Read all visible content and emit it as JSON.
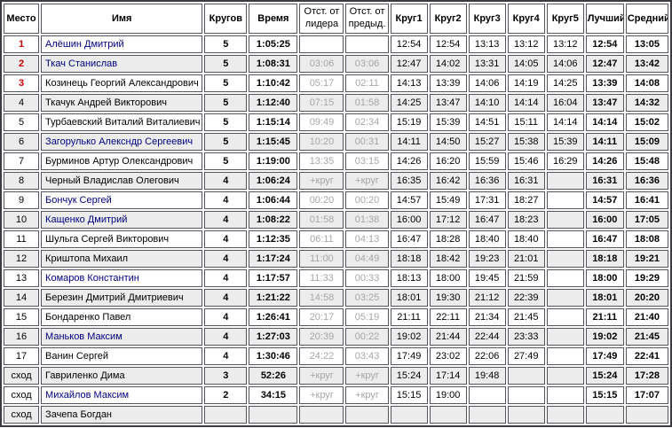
{
  "table": {
    "columns": [
      {
        "key": "place",
        "label": "Место",
        "bold": true
      },
      {
        "key": "name",
        "label": "Имя",
        "bold": true
      },
      {
        "key": "laps",
        "label": "Кругов",
        "bold": true
      },
      {
        "key": "time",
        "label": "Время",
        "bold": true
      },
      {
        "key": "gap_leader",
        "label": "Отст. от лидера",
        "bold": false
      },
      {
        "key": "gap_prev",
        "label": "Отст. от предыд.",
        "bold": false
      },
      {
        "key": "lap1",
        "label": "Круг1",
        "bold": true
      },
      {
        "key": "lap2",
        "label": "Круг2",
        "bold": true
      },
      {
        "key": "lap3",
        "label": "Круг3",
        "bold": true
      },
      {
        "key": "lap4",
        "label": "Круг4",
        "bold": true
      },
      {
        "key": "lap5",
        "label": "Круг5",
        "bold": true
      },
      {
        "key": "best",
        "label": "Лучший",
        "bold": true
      },
      {
        "key": "average",
        "label": "Средний",
        "bold": true
      }
    ],
    "rows": [
      {
        "place": "1",
        "top3": true,
        "name": "Алёшин Дмитрий",
        "name_link": true,
        "laps": "5",
        "time": "1:05:25",
        "gap_leader": "",
        "gap_prev": "",
        "lap_times": [
          "12:54",
          "12:54",
          "13:13",
          "13:12",
          "13:12"
        ],
        "best": "12:54",
        "average": "13:05"
      },
      {
        "place": "2",
        "top3": true,
        "name": "Ткач Станислав",
        "name_link": true,
        "laps": "5",
        "time": "1:08:31",
        "gap_leader": "03:06",
        "gap_prev": "03:06",
        "lap_times": [
          "12:47",
          "14:02",
          "13:31",
          "14:05",
          "14:06"
        ],
        "best": "12:47",
        "average": "13:42"
      },
      {
        "place": "3",
        "top3": true,
        "name": "Козинець Георгий Александрович",
        "name_link": false,
        "laps": "5",
        "time": "1:10:42",
        "gap_leader": "05:17",
        "gap_prev": "02:11",
        "lap_times": [
          "14:13",
          "13:39",
          "14:06",
          "14:19",
          "14:25"
        ],
        "best": "13:39",
        "average": "14:08"
      },
      {
        "place": "4",
        "top3": false,
        "name": "Ткачук Андрей Викторович",
        "name_link": false,
        "laps": "5",
        "time": "1:12:40",
        "gap_leader": "07:15",
        "gap_prev": "01:58",
        "lap_times": [
          "14:25",
          "13:47",
          "14:10",
          "14:14",
          "16:04"
        ],
        "best": "13:47",
        "average": "14:32"
      },
      {
        "place": "5",
        "top3": false,
        "name": "Турбаевский Виталий Виталиевич",
        "name_link": false,
        "laps": "5",
        "time": "1:15:14",
        "gap_leader": "09:49",
        "gap_prev": "02:34",
        "lap_times": [
          "15:19",
          "15:39",
          "14:51",
          "15:11",
          "14:14"
        ],
        "best": "14:14",
        "average": "15:02"
      },
      {
        "place": "6",
        "top3": false,
        "name": "Загорулько Алексндр Сергеевич",
        "name_link": true,
        "laps": "5",
        "time": "1:15:45",
        "gap_leader": "10:20",
        "gap_prev": "00:31",
        "lap_times": [
          "14:11",
          "14:50",
          "15:27",
          "15:38",
          "15:39"
        ],
        "best": "14:11",
        "average": "15:09"
      },
      {
        "place": "7",
        "top3": false,
        "name": "Бурминов Артур Олександрович",
        "name_link": false,
        "laps": "5",
        "time": "1:19:00",
        "gap_leader": "13:35",
        "gap_prev": "03:15",
        "lap_times": [
          "14:26",
          "16:20",
          "15:59",
          "15:46",
          "16:29"
        ],
        "best": "14:26",
        "average": "15:48"
      },
      {
        "place": "8",
        "top3": false,
        "name": "Черный Владислав Олегович",
        "name_link": false,
        "laps": "4",
        "time": "1:06:24",
        "gap_leader": "+круг",
        "gap_prev": "+круг",
        "lap_times": [
          "16:35",
          "16:42",
          "16:36",
          "16:31",
          ""
        ],
        "best": "16:31",
        "average": "16:36"
      },
      {
        "place": "9",
        "top3": false,
        "name": "Бончук Сергей",
        "name_link": true,
        "laps": "4",
        "time": "1:06:44",
        "gap_leader": "00:20",
        "gap_prev": "00:20",
        "lap_times": [
          "14:57",
          "15:49",
          "17:31",
          "18:27",
          ""
        ],
        "best": "14:57",
        "average": "16:41"
      },
      {
        "place": "10",
        "top3": false,
        "name": "Кащенко Дмитрий",
        "name_link": true,
        "laps": "4",
        "time": "1:08:22",
        "gap_leader": "01:58",
        "gap_prev": "01:38",
        "lap_times": [
          "16:00",
          "17:12",
          "16:47",
          "18:23",
          ""
        ],
        "best": "16:00",
        "average": "17:05"
      },
      {
        "place": "11",
        "top3": false,
        "name": "Шульга Сергей Викторович",
        "name_link": false,
        "laps": "4",
        "time": "1:12:35",
        "gap_leader": "06:11",
        "gap_prev": "04:13",
        "lap_times": [
          "16:47",
          "18:28",
          "18:40",
          "18:40",
          ""
        ],
        "best": "16:47",
        "average": "18:08"
      },
      {
        "place": "12",
        "top3": false,
        "name": "Криштопа Михаил",
        "name_link": false,
        "laps": "4",
        "time": "1:17:24",
        "gap_leader": "11:00",
        "gap_prev": "04:49",
        "lap_times": [
          "18:18",
          "18:42",
          "19:23",
          "21:01",
          ""
        ],
        "best": "18:18",
        "average": "19:21"
      },
      {
        "place": "13",
        "top3": false,
        "name": "Комаров Константин",
        "name_link": true,
        "laps": "4",
        "time": "1:17:57",
        "gap_leader": "11:33",
        "gap_prev": "00:33",
        "lap_times": [
          "18:13",
          "18:00",
          "19:45",
          "21:59",
          ""
        ],
        "best": "18:00",
        "average": "19:29"
      },
      {
        "place": "14",
        "top3": false,
        "name": "Березин Дмитрий Дмитриевич",
        "name_link": false,
        "laps": "4",
        "time": "1:21:22",
        "gap_leader": "14:58",
        "gap_prev": "03:25",
        "lap_times": [
          "18:01",
          "19:30",
          "21:12",
          "22:39",
          ""
        ],
        "best": "18:01",
        "average": "20:20"
      },
      {
        "place": "15",
        "top3": false,
        "name": "Бондаренко Павел",
        "name_link": false,
        "laps": "4",
        "time": "1:26:41",
        "gap_leader": "20:17",
        "gap_prev": "05:19",
        "lap_times": [
          "21:11",
          "22:11",
          "21:34",
          "21:45",
          ""
        ],
        "best": "21:11",
        "average": "21:40"
      },
      {
        "place": "16",
        "top3": false,
        "name": "Маньков Максим",
        "name_link": true,
        "laps": "4",
        "time": "1:27:03",
        "gap_leader": "20:39",
        "gap_prev": "00:22",
        "lap_times": [
          "19:02",
          "21:44",
          "22:44",
          "23:33",
          ""
        ],
        "best": "19:02",
        "average": "21:45"
      },
      {
        "place": "17",
        "top3": false,
        "name": "Ванин Сергей",
        "name_link": false,
        "laps": "4",
        "time": "1:30:46",
        "gap_leader": "24:22",
        "gap_prev": "03:43",
        "lap_times": [
          "17:49",
          "23:02",
          "22:06",
          "27:49",
          ""
        ],
        "best": "17:49",
        "average": "22:41"
      },
      {
        "place": "сход",
        "top3": false,
        "name": "Гавриленко Дима",
        "name_link": false,
        "laps": "3",
        "time": "52:26",
        "gap_leader": "+круг",
        "gap_prev": "+круг",
        "lap_times": [
          "15:24",
          "17:14",
          "19:48",
          "",
          ""
        ],
        "best": "15:24",
        "average": "17:28"
      },
      {
        "place": "сход",
        "top3": false,
        "name": "Михайлов Максим",
        "name_link": true,
        "laps": "2",
        "time": "34:15",
        "gap_leader": "+круг",
        "gap_prev": "+круг",
        "lap_times": [
          "15:15",
          "19:00",
          "",
          "",
          ""
        ],
        "best": "15:15",
        "average": "17:07"
      },
      {
        "place": "сход",
        "top3": false,
        "name": "Зачепа Богдан",
        "name_link": false,
        "laps": "",
        "time": "",
        "gap_leader": "",
        "gap_prev": "",
        "lap_times": [
          "",
          "",
          "",
          "",
          ""
        ],
        "best": "",
        "average": ""
      }
    ]
  },
  "colors": {
    "top3_red": "#cc0000",
    "name_link_navy": "#000080",
    "gap_gray": "#a6a6a6",
    "row_alt_gray": "#ececec",
    "cell_border": "#55555e",
    "outer_border": "#3b3b42"
  }
}
